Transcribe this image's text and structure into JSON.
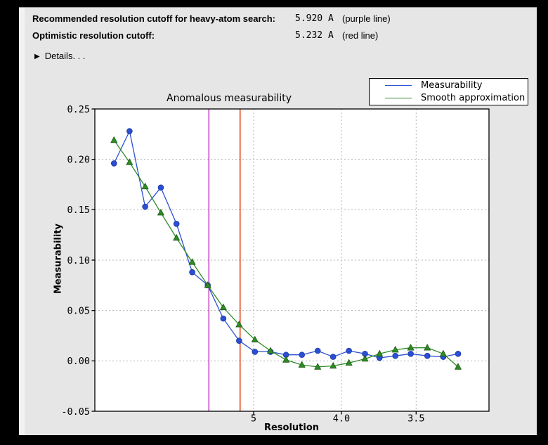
{
  "header": {
    "rows": [
      {
        "label": "Recommended resolution cutoff for heavy-atom search:",
        "value": "5.920 A",
        "note": "(purple line)"
      },
      {
        "label": "Optimistic resolution cutoff:",
        "value": "5.232 A",
        "note": "(red line)"
      }
    ],
    "details_label": "Details. . .",
    "disclosure_icon": "triangle-right"
  },
  "chart_data": {
    "type": "line",
    "title": "Anomalous measurability",
    "xlabel": "Resolution",
    "ylabel": "Measurability",
    "grid": true,
    "legend_position": "top-right",
    "x_axis": {
      "scale": "linear in 1/d^2, resolution decreasing to the right",
      "tick_values": [
        5.0,
        4.0,
        3.5
      ],
      "tick_labels": [
        "5",
        "4.0",
        "3.5"
      ]
    },
    "y_axis": {
      "range": [
        -0.05,
        0.25
      ],
      "tick_values": [
        0.25,
        0.2,
        0.15,
        0.1,
        0.05,
        0.0,
        -0.05
      ],
      "tick_labels": [
        "0.25",
        "0.20",
        "0.15",
        "0.10",
        "0.05",
        "0.00",
        "-0.05"
      ],
      "grid_values": [
        0.2,
        0.15,
        0.1,
        0.05,
        0.0
      ]
    },
    "resolution_bins": [
      15.37,
      11.04,
      9.05,
      7.85,
      7.03,
      6.42,
      5.95,
      5.57,
      5.25,
      4.98,
      4.75,
      4.55,
      4.37,
      4.21,
      4.07,
      3.94,
      3.82,
      3.72,
      3.62,
      3.53,
      3.44,
      3.36,
      3.29
    ],
    "series": [
      {
        "name": "Measurability",
        "color": "#2b4fd2",
        "edge_color": "#1a35a5",
        "marker": "circle",
        "values": [
          0.196,
          0.228,
          0.153,
          0.172,
          0.136,
          0.088,
          0.075,
          0.042,
          0.02,
          0.009,
          0.009,
          0.006,
          0.006,
          0.01,
          0.004,
          0.01,
          0.007,
          0.003,
          0.005,
          0.007,
          0.005,
          0.004,
          0.007
        ]
      },
      {
        "name": "Smooth approximation",
        "color": "#2f8b28",
        "edge_color": "#1d5a12",
        "marker": "triangle",
        "values": [
          0.219,
          0.197,
          0.173,
          0.147,
          0.122,
          0.098,
          0.075,
          0.053,
          0.036,
          0.021,
          0.01,
          0.001,
          -0.004,
          -0.006,
          -0.005,
          -0.002,
          0.002,
          0.007,
          0.011,
          0.013,
          0.013,
          0.007,
          -0.006
        ]
      }
    ],
    "vlines": [
      {
        "name": "purple line",
        "resolution": 5.92,
        "color": "#c23ac2"
      },
      {
        "name": "red line",
        "resolution": 5.232,
        "color": "#dd3a0d"
      }
    ]
  }
}
